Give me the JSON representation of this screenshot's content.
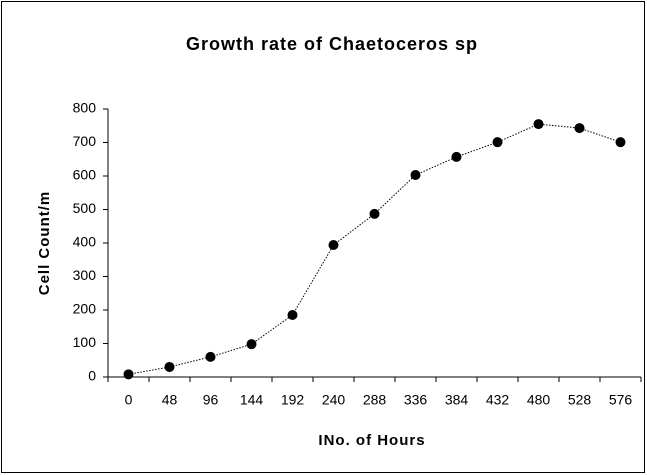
{
  "chart_data": {
    "type": "line",
    "title": "Growth rate of Chaetoceros sp",
    "x_label": "INo. of Hours",
    "y_label": "Cell Count/m",
    "categories": [
      "0",
      "48",
      "96",
      "144",
      "192",
      "240",
      "288",
      "336",
      "384",
      "432",
      "480",
      "528",
      "576"
    ],
    "values": [
      8,
      30,
      60,
      98,
      185,
      394,
      487,
      603,
      657,
      701,
      755,
      743,
      701
    ],
    "color": "#000000",
    "ylim": [
      0,
      800
    ],
    "yticks": [
      0,
      100,
      200,
      300,
      400,
      500,
      600,
      700,
      800
    ],
    "grid": false
  }
}
